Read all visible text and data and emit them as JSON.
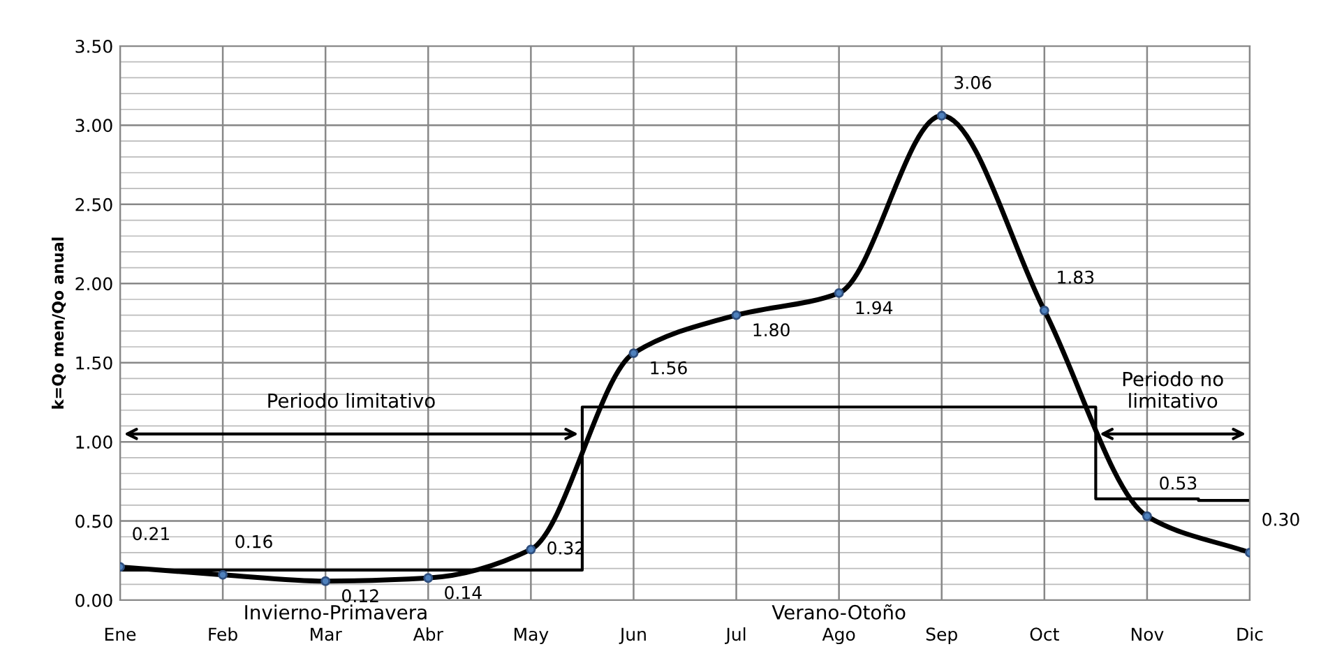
{
  "chart_data": {
    "type": "line",
    "ylabel": "k=Qo men/Qo anual",
    "categories": [
      "Ene",
      "Feb",
      "Mar",
      "Abr",
      "May",
      "Jun",
      "Jul",
      "Ago",
      "Sep",
      "Oct",
      "Nov",
      "Dic"
    ],
    "series": [
      {
        "type": "line",
        "color": "#000000",
        "marker": "circle",
        "values": [
          0.21,
          0.16,
          0.12,
          0.14,
          0.32,
          1.56,
          1.8,
          1.94,
          3.06,
          1.83,
          0.53,
          0.3
        ],
        "value_labels": [
          "0.21",
          "0.16",
          "0.12",
          "0.14",
          "0.32",
          "1.56",
          "1.80",
          "1.94",
          "3.06",
          "1.83",
          "0.53",
          "0.30"
        ]
      },
      {
        "type": "step",
        "color": "#000000",
        "marker": "none",
        "values": [
          0.19,
          0.19,
          0.19,
          0.19,
          0.19,
          1.22,
          1.22,
          1.22,
          1.22,
          1.22,
          0.64,
          0.63
        ]
      }
    ],
    "annotations": [
      "Periodo limitativo",
      "Periodo no\nlimitativo",
      "Invierno-Primavera",
      "Verano-Otoño"
    ],
    "ylim": [
      0,
      3.5
    ],
    "yticks": [
      {
        "value": 0,
        "label": "0.00"
      },
      {
        "value": 0.5,
        "label": "0.50"
      },
      {
        "value": 1,
        "label": "1.00"
      },
      {
        "value": 1.5,
        "label": "1.50"
      },
      {
        "value": 2,
        "label": "2.00"
      },
      {
        "value": 2.5,
        "label": "2.50"
      },
      {
        "value": 3,
        "label": "3.00"
      },
      {
        "value": 3.5,
        "label": "3.50"
      }
    ],
    "grid": true,
    "legend": false
  }
}
